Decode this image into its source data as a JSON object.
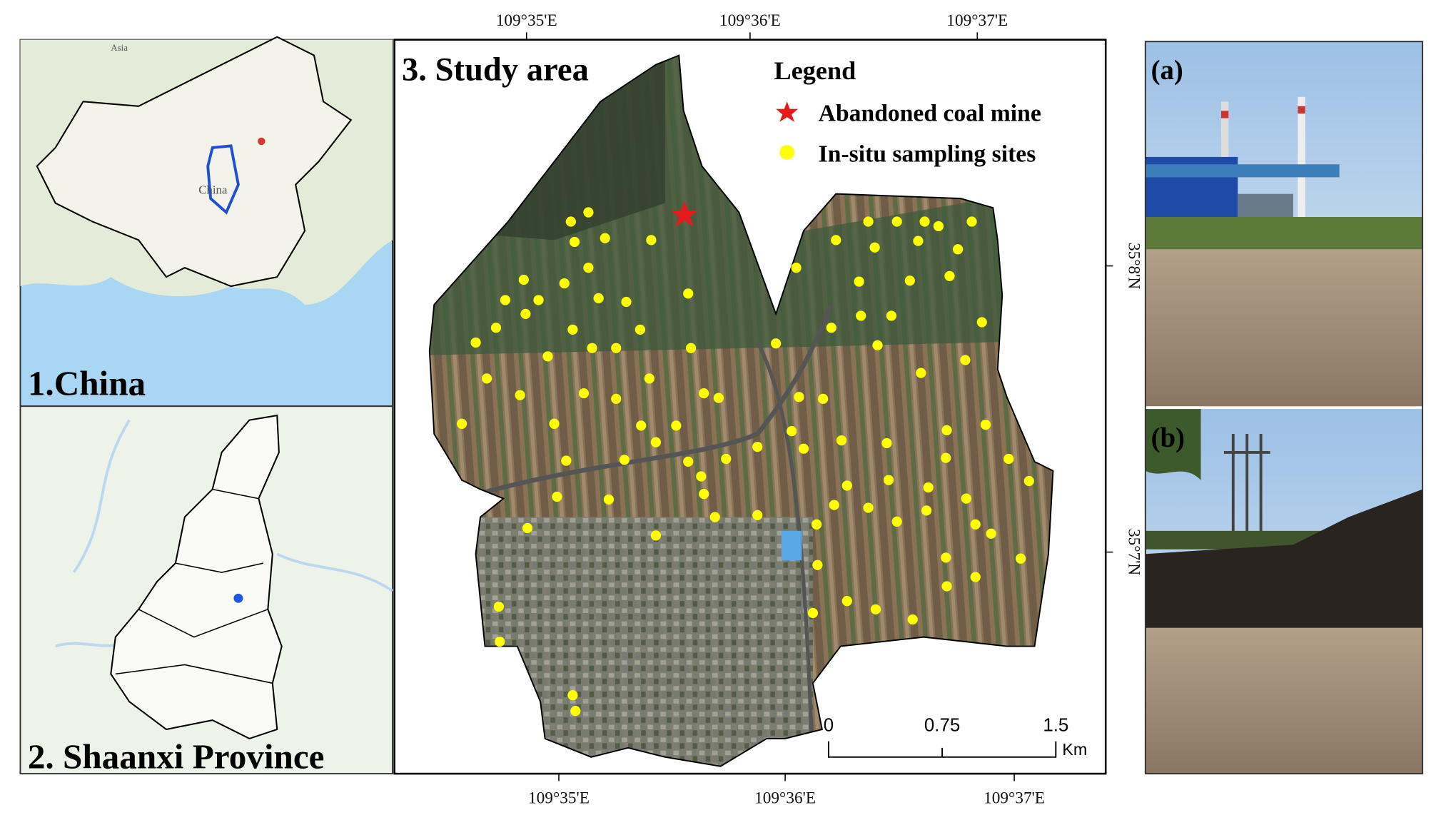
{
  "panels": {
    "china": {
      "label": "1.China",
      "map_labels": [
        "Asia",
        "China"
      ]
    },
    "shaanxi": {
      "label": "2. Shaanxi Province"
    },
    "study_area": {
      "label": "3. Study area",
      "legend": {
        "title": "Legend",
        "items": [
          "Abandoned coal mine",
          "In-situ sampling sites"
        ]
      },
      "scale_bar": {
        "ticks": [
          0,
          0.75,
          1.5
        ],
        "unit": "Km"
      },
      "top_longitudes": [
        "109°35'E",
        "109°36'E",
        "109°37'E"
      ],
      "bottom_longitudes": [
        "109°35'E",
        "109°36'E",
        "109°37'E"
      ],
      "latitudes": [
        "35°8'N",
        "35°7'N"
      ]
    }
  },
  "photos": [
    "(a)",
    "(b)"
  ]
}
